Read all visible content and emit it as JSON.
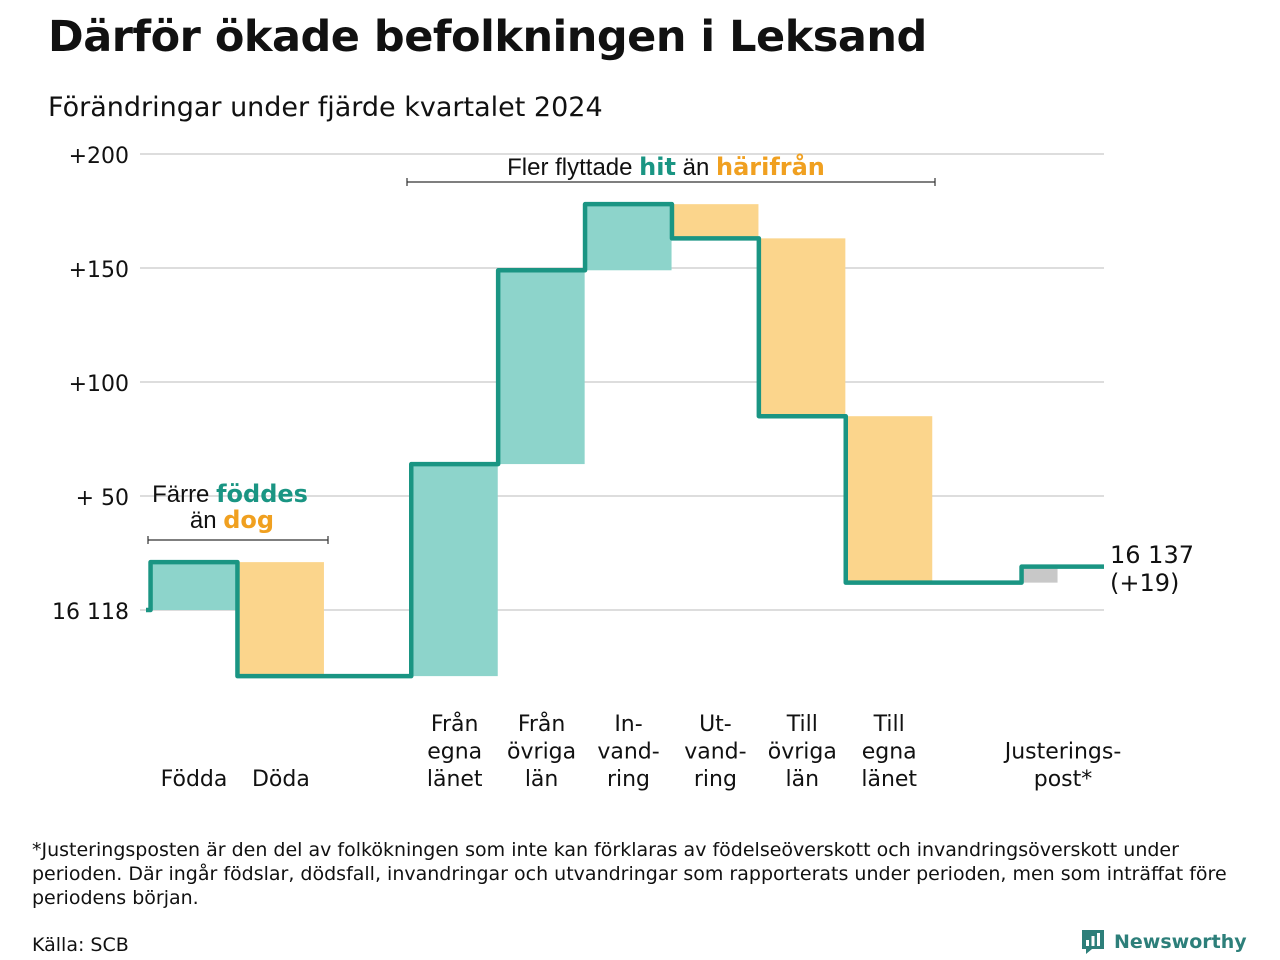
{
  "title": "Därför ökade befolkningen i Leksand",
  "subtitle": "Förändringar under fjärde kvartalet 2024",
  "colors": {
    "increase": "#8dd4cb",
    "decrease": "#fbd58c",
    "adjustment": "#c8c8c8",
    "line": "#1a9583",
    "teal_text": "#1a9583",
    "orange_text": "#f0a020",
    "grid": "#dddddd"
  },
  "annotations": {
    "births": {
      "part1": "Färre",
      "part2": "föddes",
      "part3": "än",
      "part4": "dog"
    },
    "migration": {
      "part1": "Fler flyttade",
      "part2": "hit",
      "part3": "än",
      "part4": "härifrån"
    }
  },
  "chart_data": {
    "type": "waterfall",
    "title": "Därför ökade befolkningen i Leksand",
    "subtitle": "Förändringar under fjärde kvartalet 2024",
    "baseline": 16118,
    "baseline_label": "16 118",
    "y_ticks": [
      {
        "value": 200,
        "label": "+200"
      },
      {
        "value": 150,
        "label": "+150"
      },
      {
        "value": 100,
        "label": "+100"
      },
      {
        "value": 50,
        "label": "+ 50"
      }
    ],
    "ylim": [
      -45,
      200
    ],
    "grid": true,
    "steps": [
      {
        "label": [
          "Födda"
        ],
        "value": 21,
        "kind": "increase"
      },
      {
        "label": [
          "Döda"
        ],
        "value": -50,
        "kind": "decrease"
      },
      {
        "label": [],
        "value": 0,
        "kind": "gap"
      },
      {
        "label": [
          "Från",
          "egna",
          "länet"
        ],
        "value": 93,
        "kind": "increase"
      },
      {
        "label": [
          "Från",
          "övriga",
          "län"
        ],
        "value": 85,
        "kind": "increase"
      },
      {
        "label": [
          "In-",
          "vand-",
          "ring"
        ],
        "value": 29,
        "kind": "increase"
      },
      {
        "label": [
          "Ut-",
          "vand-",
          "ring"
        ],
        "value": -15,
        "kind": "decrease"
      },
      {
        "label": [
          "Till",
          "övriga",
          "län"
        ],
        "value": -78,
        "kind": "decrease"
      },
      {
        "label": [
          "Till",
          "egna",
          "länet"
        ],
        "value": -73,
        "kind": "decrease"
      },
      {
        "label": [],
        "value": 0,
        "kind": "gap"
      },
      {
        "label": [
          "Justerings-",
          "post*"
        ],
        "value": 7,
        "kind": "adjustment"
      }
    ],
    "end_value_label": "16 137",
    "end_change_label": "(+19)"
  },
  "footnote": "*Justeringsposten är den del av folkökningen som inte kan förklaras av födelseöverskott och invandringsöverskott under perioden. Där ingår födslar, dödsfall, invandringar och utvandringar som rapporterats under perioden, men som inträffat före periodens början.",
  "source": "Källa: SCB",
  "brand": {
    "name": "Newsworthy",
    "icon": "newsworthy-logo-icon"
  }
}
